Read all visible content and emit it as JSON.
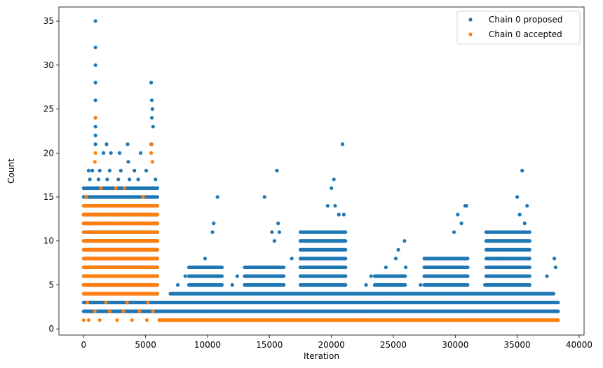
{
  "chart_data": {
    "type": "scatter",
    "title": "",
    "xlabel": "Iteration",
    "ylabel": "Count",
    "xlim": [
      -2000,
      40400
    ],
    "ylim": [
      -0.7,
      36.6
    ],
    "x_ticks": [
      0,
      5000,
      10000,
      15000,
      20000,
      25000,
      30000,
      35000,
      40000
    ],
    "y_ticks": [
      0,
      5,
      10,
      15,
      20,
      25,
      30,
      35
    ],
    "grid": false,
    "legend_position": "top-right",
    "series": [
      {
        "name": "Chain 0 proposed",
        "color": "#1f77b4",
        "points": [
          [
            950,
            35
          ],
          [
            950,
            32
          ],
          [
            950,
            30
          ],
          [
            950,
            28
          ],
          [
            950,
            26
          ],
          [
            950,
            24
          ],
          [
            950,
            23
          ],
          [
            950,
            22
          ],
          [
            950,
            21
          ],
          [
            1600,
            20
          ],
          [
            1850,
            21
          ],
          [
            2200,
            20
          ],
          [
            2900,
            20
          ],
          [
            3550,
            21
          ],
          [
            3600,
            19
          ],
          [
            4600,
            20
          ],
          [
            5450,
            28
          ],
          [
            5500,
            26
          ],
          [
            5550,
            25
          ],
          [
            5500,
            24
          ],
          [
            5600,
            23
          ],
          [
            5450,
            21
          ],
          [
            400,
            18
          ],
          [
            700,
            18
          ],
          [
            1300,
            18
          ],
          [
            2100,
            18
          ],
          [
            3000,
            18
          ],
          [
            4100,
            18
          ],
          [
            5050,
            18
          ],
          [
            5800,
            17
          ],
          [
            500,
            17
          ],
          [
            1200,
            17
          ],
          [
            1900,
            17
          ],
          [
            2800,
            17
          ],
          [
            3700,
            17
          ],
          [
            4400,
            17
          ],
          [
            5300,
            16
          ],
          [
            10800,
            15
          ],
          [
            10500,
            12
          ],
          [
            10400,
            11
          ],
          [
            14600,
            15
          ],
          [
            15600,
            18
          ],
          [
            15700,
            12
          ],
          [
            15200,
            11
          ],
          [
            15400,
            10
          ],
          [
            15800,
            11
          ],
          [
            20000,
            16
          ],
          [
            20200,
            17
          ],
          [
            20900,
            21
          ],
          [
            19700,
            14
          ],
          [
            20300,
            14
          ],
          [
            20600,
            13
          ],
          [
            21000,
            13
          ],
          [
            25900,
            10
          ],
          [
            25400,
            9
          ],
          [
            25200,
            8
          ],
          [
            26000,
            7
          ],
          [
            30200,
            13
          ],
          [
            30800,
            14
          ],
          [
            30900,
            14
          ],
          [
            29900,
            11
          ],
          [
            30500,
            12
          ],
          [
            35000,
            15
          ],
          [
            35400,
            18
          ],
          [
            35800,
            14
          ],
          [
            35200,
            13
          ],
          [
            35600,
            12
          ],
          [
            38000,
            8
          ],
          [
            38100,
            7
          ],
          [
            37400,
            6
          ],
          [
            23200,
            6
          ],
          [
            22800,
            5
          ],
          [
            24400,
            7
          ],
          [
            28600,
            7
          ],
          [
            27200,
            5
          ],
          [
            33200,
            7
          ],
          [
            32400,
            5
          ],
          [
            12400,
            6
          ],
          [
            12000,
            5
          ],
          [
            16800,
            8
          ],
          [
            17500,
            7
          ],
          [
            9800,
            8
          ],
          [
            9200,
            7
          ],
          [
            8200,
            6
          ],
          [
            7600,
            5
          ]
        ],
        "bands": [
          {
            "x_start": 0,
            "x_end": 6000,
            "y_values": [
              2,
              3,
              4,
              5,
              6,
              7,
              8,
              9,
              10,
              11,
              12,
              13,
              14,
              15,
              16
            ]
          },
          {
            "x_start": 6100,
            "x_end": 38300,
            "y_values": [
              2,
              3
            ]
          },
          {
            "x_start": 7000,
            "x_end": 38000,
            "y_values": [
              4
            ]
          },
          {
            "x_start": 8500,
            "x_end": 11200,
            "y_values": [
              5,
              6,
              7
            ]
          },
          {
            "x_start": 13000,
            "x_end": 16200,
            "y_values": [
              5,
              6,
              7
            ]
          },
          {
            "x_start": 17500,
            "x_end": 21200,
            "y_values": [
              5,
              6,
              7,
              8,
              9,
              10,
              11
            ]
          },
          {
            "x_start": 23500,
            "x_end": 26000,
            "y_values": [
              5,
              6
            ]
          },
          {
            "x_start": 27500,
            "x_end": 31000,
            "y_values": [
              5,
              6,
              7,
              8
            ]
          },
          {
            "x_start": 32500,
            "x_end": 36000,
            "y_values": [
              5,
              6,
              7,
              8,
              9,
              10,
              11
            ]
          }
        ]
      },
      {
        "name": "Chain 0 accepted",
        "color": "#ff7f0e",
        "points": [
          [
            950,
            24
          ],
          [
            950,
            20
          ],
          [
            900,
            19
          ],
          [
            5500,
            21
          ],
          [
            5450,
            20
          ],
          [
            5550,
            19
          ],
          [
            1400,
            16
          ],
          [
            2600,
            16
          ],
          [
            4800,
            15
          ],
          [
            3300,
            16
          ],
          [
            200,
            15
          ],
          [
            0,
            1
          ],
          [
            400,
            1
          ],
          [
            900,
            2
          ],
          [
            1300,
            1
          ],
          [
            2100,
            2
          ],
          [
            2700,
            1
          ],
          [
            3200,
            2
          ],
          [
            3900,
            1
          ],
          [
            4500,
            2
          ],
          [
            5100,
            1
          ],
          [
            5600,
            2
          ],
          [
            300,
            3
          ],
          [
            1800,
            3
          ],
          [
            3500,
            3
          ],
          [
            5200,
            3
          ]
        ],
        "bands": [
          {
            "x_start": 0,
            "x_end": 6000,
            "y_values": [
              4,
              5,
              6,
              7,
              8,
              9,
              10,
              11,
              12,
              13,
              14
            ]
          },
          {
            "x_start": 6100,
            "x_end": 38300,
            "y_values": [
              1
            ]
          }
        ]
      }
    ]
  }
}
